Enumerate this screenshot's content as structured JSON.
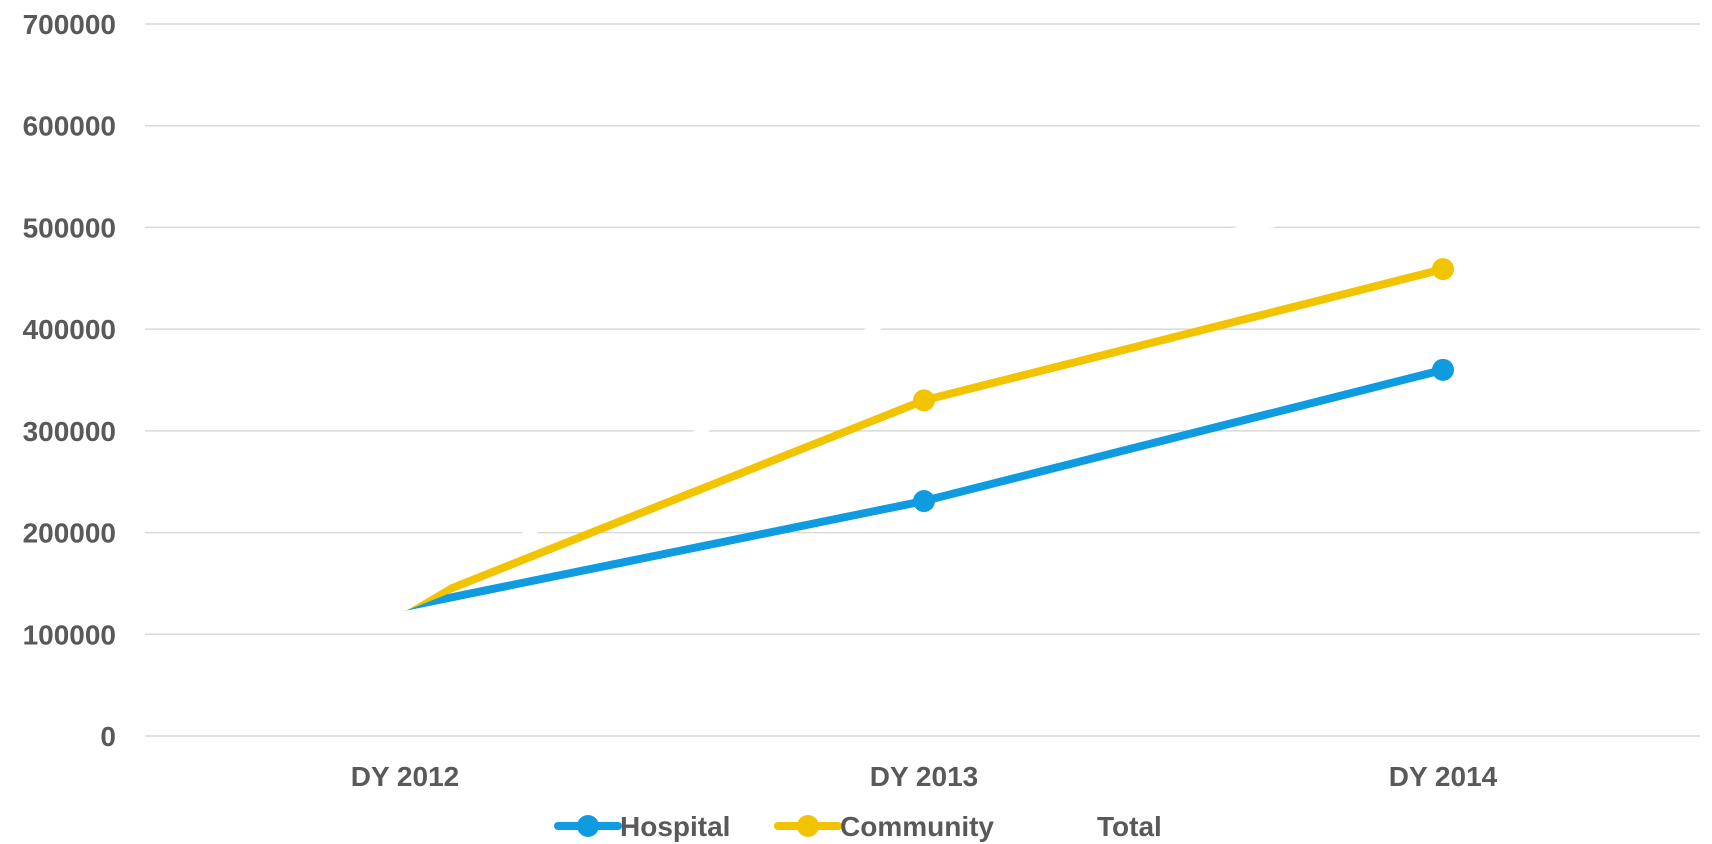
{
  "chart_data": {
    "type": "line",
    "categories": [
      "DY 2012",
      "DY 2013",
      "DY 2014"
    ],
    "series": [
      {
        "name": "Hospital",
        "color": "#0E9BE0",
        "values": [
          127000,
          231000,
          360000
        ]
      },
      {
        "name": "Community",
        "color": "#F2C400",
        "values": [
          127000,
          330000,
          459000
        ]
      },
      {
        "name": "Total",
        "color": "#FFFFFF",
        "values": [
          127000,
          430000,
          540000
        ]
      }
    ],
    "ylim": [
      0,
      700000
    ],
    "yticks": [
      "0",
      "100000",
      "200000",
      "300000",
      "400000",
      "500000",
      "600000",
      "700000"
    ],
    "grid": true,
    "legend": "bottom",
    "title": "",
    "xlabel": "",
    "ylabel": ""
  }
}
